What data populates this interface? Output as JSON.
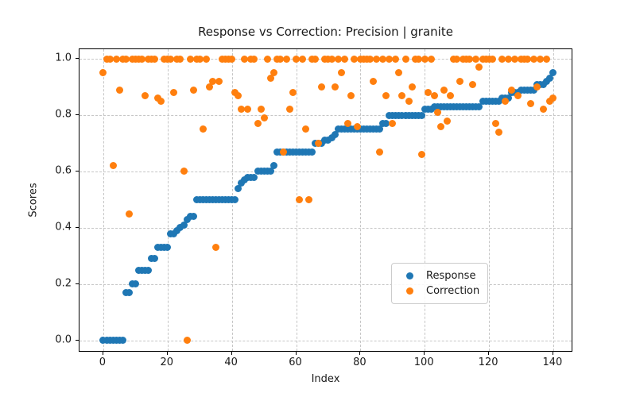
{
  "title": "Response vs Correction: Precision | granite",
  "x_axis_label": "Index",
  "y_axis_label": "Scores",
  "legend": {
    "entries": [
      {
        "label": "Response",
        "color": "#1f77b4"
      },
      {
        "label": "Correction",
        "color": "#ff7f0e"
      }
    ]
  },
  "chart_data": {
    "type": "scatter",
    "title": "Response vs Correction: Precision | granite",
    "xlabel": "Index",
    "ylabel": "Scores",
    "xlim": [
      -7.4,
      146.2
    ],
    "ylim": [
      -0.043,
      1.034
    ],
    "xticks": [
      0,
      20,
      40,
      60,
      80,
      100,
      120,
      140
    ],
    "yticks": [
      0.0,
      0.2,
      0.4,
      0.6,
      0.8,
      1.0
    ],
    "grid": true,
    "legend_position": "lower right",
    "x_start": 0,
    "series": [
      {
        "name": "Response",
        "color": "#1f77b4",
        "values": [
          0,
          0,
          0,
          0,
          0,
          0,
          0,
          0.17,
          0.17,
          0.2,
          0.2,
          0.25,
          0.25,
          0.25,
          0.25,
          0.29,
          0.29,
          0.33,
          0.33,
          0.33,
          0.33,
          0.38,
          0.38,
          0.39,
          0.4,
          0.41,
          0.43,
          0.44,
          0.44,
          0.5,
          0.5,
          0.5,
          0.5,
          0.5,
          0.5,
          0.5,
          0.5,
          0.5,
          0.5,
          0.5,
          0.5,
          0.5,
          0.54,
          0.56,
          0.57,
          0.58,
          0.58,
          0.58,
          0.6,
          0.6,
          0.6,
          0.6,
          0.6,
          0.62,
          0.67,
          0.67,
          0.67,
          0.67,
          0.67,
          0.67,
          0.67,
          0.67,
          0.67,
          0.67,
          0.67,
          0.67,
          0.7,
          0.7,
          0.7,
          0.71,
          0.71,
          0.72,
          0.73,
          0.75,
          0.75,
          0.75,
          0.75,
          0.75,
          0.75,
          0.75,
          0.75,
          0.75,
          0.75,
          0.75,
          0.75,
          0.75,
          0.75,
          0.77,
          0.77,
          0.8,
          0.8,
          0.8,
          0.8,
          0.8,
          0.8,
          0.8,
          0.8,
          0.8,
          0.8,
          0.8,
          0.82,
          0.82,
          0.82,
          0.83,
          0.83,
          0.83,
          0.83,
          0.83,
          0.83,
          0.83,
          0.83,
          0.83,
          0.83,
          0.83,
          0.83,
          0.83,
          0.83,
          0.83,
          0.85,
          0.85,
          0.85,
          0.85,
          0.85,
          0.85,
          0.86,
          0.86,
          0.86,
          0.88,
          0.88,
          0.88,
          0.89,
          0.89,
          0.89,
          0.89,
          0.89,
          0.91,
          0.91,
          0.91,
          0.92,
          0.93,
          0.95
        ]
      },
      {
        "name": "Correction",
        "color": "#ff7f0e",
        "values": [
          0.95,
          1,
          1,
          0.62,
          1,
          0.89,
          1,
          1,
          0.45,
          1,
          1,
          1,
          1,
          0.87,
          1,
          1,
          1,
          0.86,
          0.85,
          1,
          1,
          1,
          0.88,
          1,
          1,
          0.6,
          0,
          1,
          0.89,
          1,
          1,
          0.75,
          1,
          0.9,
          0.92,
          0.33,
          0.92,
          1,
          1,
          1,
          1,
          0.88,
          0.87,
          0.82,
          1,
          0.82,
          1,
          1,
          0.77,
          0.82,
          0.79,
          1,
          0.93,
          0.95,
          1,
          1,
          0.67,
          1,
          0.82,
          0.88,
          1,
          0.5,
          1,
          0.75,
          0.5,
          1,
          1,
          0.7,
          0.9,
          1,
          1,
          1,
          0.9,
          1,
          0.95,
          1,
          0.77,
          0.87,
          1,
          0.76,
          1,
          1,
          1,
          1,
          0.92,
          1,
          0.67,
          1,
          0.87,
          1,
          0.77,
          1,
          0.95,
          0.87,
          1,
          0.85,
          0.9,
          1,
          1,
          0.66,
          1,
          0.88,
          1,
          0.87,
          0.81,
          0.76,
          0.89,
          0.78,
          0.87,
          1,
          1,
          0.92,
          1,
          1,
          1,
          0.91,
          1,
          0.97,
          1,
          1,
          1,
          1,
          0.77,
          0.74,
          1,
          0.85,
          1,
          0.89,
          1,
          0.87,
          1,
          1,
          1,
          0.84,
          1,
          0.9,
          1,
          0.82,
          1,
          0.85,
          0.86
        ]
      }
    ]
  }
}
